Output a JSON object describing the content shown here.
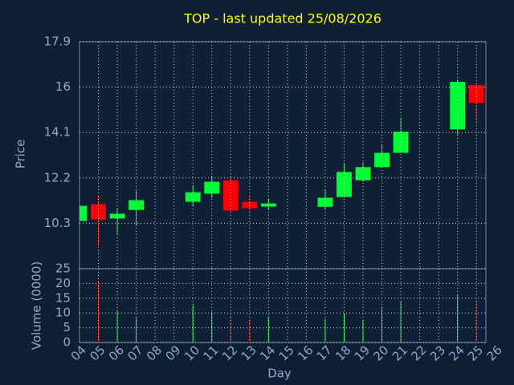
{
  "chart_data": [
    {
      "type": "candlestick",
      "title": "TOP - last updated 25/08/2026",
      "y_label": "Price",
      "x": [
        4,
        5,
        6,
        7,
        10,
        11,
        12,
        13,
        14,
        17,
        18,
        19,
        20,
        21,
        24,
        25
      ],
      "open": [
        10.4,
        11.1,
        10.5,
        10.86,
        11.2,
        11.54,
        12.1,
        11.2,
        11.0,
        10.99,
        11.4,
        12.1,
        12.65,
        13.25,
        14.23,
        16.08
      ],
      "high": [
        11.05,
        11.44,
        10.93,
        11.67,
        11.9,
        12.28,
        12.28,
        11.47,
        11.33,
        11.7,
        12.82,
        12.85,
        13.6,
        14.73,
        16.32,
        16.15
      ],
      "low": [
        10.35,
        9.35,
        9.85,
        10.2,
        11.0,
        11.37,
        10.76,
        10.76,
        10.86,
        10.86,
        11.37,
        12.04,
        12.65,
        13.25,
        14.0,
        14.53
      ],
      "close": [
        11.03,
        10.46,
        10.7,
        11.27,
        11.6,
        12.04,
        10.83,
        10.93,
        11.13,
        11.37,
        12.45,
        12.65,
        13.25,
        14.13,
        16.22,
        15.34
      ],
      "up_color": "#00ff33",
      "down_color": "#ff0000",
      "xlim": [
        4,
        25.5
      ],
      "ylim": [
        8.4,
        17.9
      ],
      "yticks": [
        10.3,
        12.2,
        14.1,
        16,
        17.9
      ],
      "grid": true
    },
    {
      "type": "bar",
      "x_label": "Day",
      "y_label": "Volume (0000)",
      "x": [
        5,
        6,
        7,
        10,
        11,
        12,
        13,
        14,
        17,
        18,
        19,
        20,
        21,
        24,
        25
      ],
      "values": [
        21,
        10.6,
        8.5,
        13,
        10.4,
        9,
        8,
        8.8,
        8,
        10,
        7.7,
        11.7,
        14.1,
        16.2,
        14.4
      ],
      "colors": [
        "#ff0000",
        "#00ff33",
        "#00ff33",
        "#00ff33",
        "#00ff33",
        "#ff0000",
        "#ff0000",
        "#00ff33",
        "#00ff33",
        "#00ff33",
        "#00ff33",
        "#00ff33",
        "#00ff33",
        "#00ff33",
        "#ff0000"
      ],
      "xlim": [
        4,
        25.5
      ],
      "ylim": [
        0,
        25
      ],
      "yticks": [
        0,
        5,
        10,
        15,
        20,
        25
      ],
      "xticks": [
        {
          "value": 4,
          "label": "04"
        },
        {
          "value": 5,
          "label": "05"
        },
        {
          "value": 6,
          "label": "06"
        },
        {
          "value": 7,
          "label": "07"
        },
        {
          "value": 8,
          "label": "08"
        },
        {
          "value": 9,
          "label": "09"
        },
        10,
        11,
        12,
        13,
        14,
        15,
        16,
        17,
        18,
        19,
        20,
        21,
        22,
        23,
        24,
        25,
        26
      ],
      "grid": true
    }
  ]
}
